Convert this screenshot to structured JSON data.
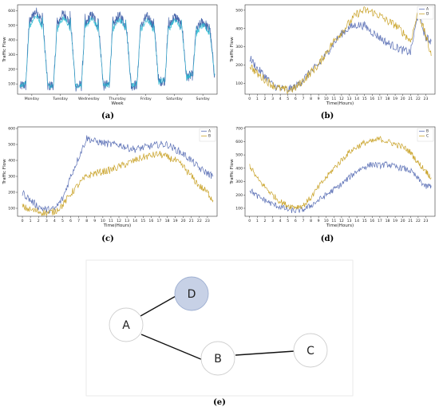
{
  "chart_data": [
    {
      "id": "a",
      "type": "line",
      "caption": "(a)",
      "xlabel": "Week",
      "ylabel": "Traffic Flow",
      "x_tick_labels": [
        "Monday",
        "Tuesday",
        "Wednesday",
        "Thursday",
        "Friday",
        "Saturday",
        "Sunday"
      ],
      "yticks": [
        100,
        200,
        300,
        400,
        500,
        600
      ],
      "ylim": [
        30,
        640
      ],
      "legend": null,
      "series": [
        {
          "color": "#3f5fa8",
          "days": 7,
          "day_minimum": [
            55,
            55,
            55,
            60,
            60,
            90,
            130
          ],
          "day_peak": [
            590,
            575,
            565,
            560,
            555,
            555,
            520
          ]
        },
        {
          "color": "#1cb8d0",
          "days": 7,
          "day_minimum": [
            60,
            60,
            60,
            65,
            65,
            95,
            135
          ],
          "day_peak": [
            560,
            545,
            540,
            535,
            530,
            530,
            495
          ]
        }
      ]
    },
    {
      "id": "b",
      "type": "line",
      "caption": "(b)",
      "xlabel": "Time(Hours)",
      "ylabel": "Traffic Flow",
      "x": [
        0,
        1,
        2,
        3,
        4,
        5,
        6,
        7,
        8,
        9,
        10,
        11,
        12,
        13,
        14,
        15,
        16,
        17,
        18,
        19,
        20,
        21,
        22,
        23,
        23.7
      ],
      "x_tick_labels": [
        "0",
        "1",
        "2",
        "3",
        "4",
        "5",
        "6",
        "7",
        "8",
        "9",
        "10",
        "11",
        "12",
        "13",
        "14",
        "15",
        "16",
        "17",
        "18",
        "19",
        "20",
        "21",
        "22",
        "23"
      ],
      "yticks": [
        100,
        200,
        300,
        400,
        500
      ],
      "ylim": [
        40,
        530
      ],
      "legend": "top-right",
      "series": [
        {
          "name": "A",
          "color": "#5a6fb5",
          "values": [
            240,
            180,
            140,
            90,
            70,
            65,
            80,
            120,
            165,
            200,
            260,
            320,
            370,
            405,
            420,
            415,
            380,
            350,
            320,
            300,
            280,
            270,
            480,
            350,
            330
          ]
        },
        {
          "name": "D",
          "color": "#c9a227",
          "values": [
            200,
            150,
            120,
            90,
            70,
            60,
            75,
            115,
            160,
            200,
            270,
            330,
            380,
            430,
            480,
            500,
            490,
            470,
            440,
            420,
            380,
            330,
            490,
            360,
            250
          ]
        }
      ]
    },
    {
      "id": "c",
      "type": "line",
      "caption": "(c)",
      "xlabel": "Time(Hours)",
      "ylabel": "Traffic Flow",
      "x": [
        0,
        1,
        2,
        3,
        4,
        5,
        6,
        7,
        8,
        9,
        10,
        11,
        12,
        13,
        14,
        15,
        16,
        17,
        18,
        19,
        20,
        21,
        22,
        23,
        23.7
      ],
      "x_tick_labels": [
        "0",
        "1",
        "2",
        "3",
        "4",
        "5",
        "6",
        "7",
        "8",
        "9",
        "10",
        "11",
        "12",
        "13",
        "14",
        "15",
        "16",
        "17",
        "18",
        "19",
        "20",
        "21",
        "22",
        "23"
      ],
      "yticks": [
        100,
        200,
        300,
        400,
        500,
        600
      ],
      "ylim": [
        50,
        610
      ],
      "legend": "top-right",
      "series": [
        {
          "name": "A",
          "color": "#5a6fb5",
          "values": [
            200,
            150,
            110,
            90,
            95,
            160,
            300,
            420,
            540,
            520,
            510,
            500,
            500,
            480,
            470,
            480,
            490,
            500,
            500,
            470,
            440,
            400,
            350,
            320,
            300
          ]
        },
        {
          "name": "B",
          "color": "#c9a227",
          "values": [
            110,
            90,
            80,
            70,
            80,
            120,
            190,
            250,
            300,
            320,
            330,
            340,
            360,
            380,
            400,
            420,
            430,
            440,
            420,
            400,
            360,
            300,
            240,
            200,
            150
          ]
        }
      ]
    },
    {
      "id": "d",
      "type": "line",
      "caption": "(d)",
      "xlabel": "Time(Hours)",
      "ylabel": "Traffic Flow",
      "x": [
        0,
        1,
        2,
        3,
        4,
        5,
        6,
        7,
        8,
        9,
        10,
        11,
        12,
        13,
        14,
        15,
        16,
        17,
        18,
        19,
        20,
        21,
        22,
        23,
        23.7
      ],
      "x_tick_labels": [
        "0",
        "1",
        "2",
        "3",
        "4",
        "5",
        "6",
        "7",
        "8",
        "9",
        "10",
        "11",
        "12",
        "13",
        "14",
        "15",
        "16",
        "17",
        "18",
        "19",
        "20",
        "21",
        "22",
        "23"
      ],
      "yticks": [
        100,
        200,
        300,
        400,
        500,
        600,
        700
      ],
      "ylim": [
        40,
        710
      ],
      "legend": "top-right",
      "series": [
        {
          "name": "B",
          "color": "#5a6fb5",
          "values": [
            240,
            190,
            160,
            130,
            110,
            90,
            80,
            90,
            120,
            160,
            200,
            240,
            280,
            330,
            380,
            410,
            430,
            420,
            430,
            410,
            400,
            380,
            320,
            260,
            270
          ]
        },
        {
          "name": "C",
          "color": "#c9a227",
          "values": [
            420,
            320,
            260,
            200,
            150,
            120,
            110,
            120,
            180,
            260,
            330,
            400,
            460,
            520,
            560,
            590,
            600,
            620,
            600,
            580,
            560,
            520,
            440,
            380,
            330
          ]
        }
      ]
    }
  ],
  "graph": {
    "caption": "(e)",
    "nodes": [
      {
        "id": "A",
        "label": "A",
        "fill": "#ffffff"
      },
      {
        "id": "D",
        "label": "D",
        "fill": "#c7d1e6"
      },
      {
        "id": "B",
        "label": "B",
        "fill": "#ffffff"
      },
      {
        "id": "C",
        "label": "C",
        "fill": "#ffffff"
      }
    ],
    "edges": [
      [
        "A",
        "D"
      ],
      [
        "A",
        "B"
      ],
      [
        "B",
        "C"
      ]
    ]
  }
}
